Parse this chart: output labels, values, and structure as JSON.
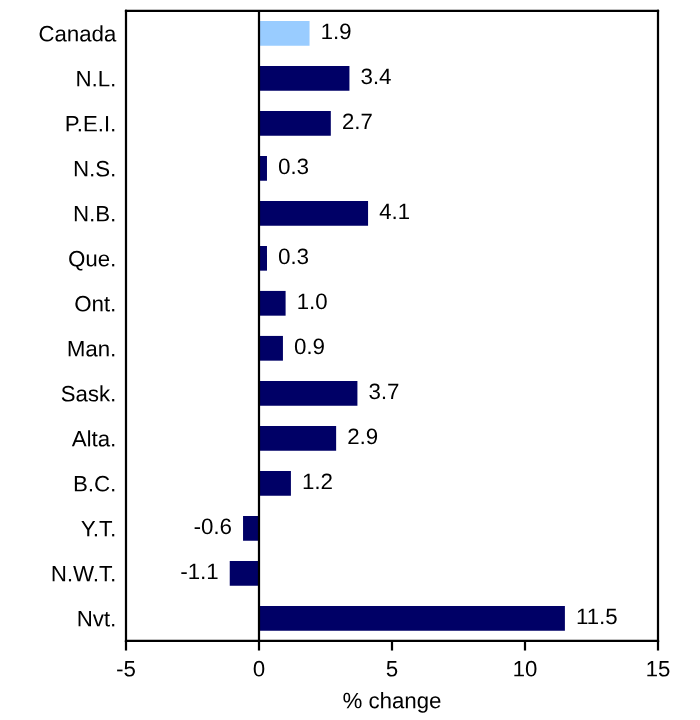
{
  "chart_data": {
    "type": "bar",
    "orientation": "horizontal",
    "xlabel": "% change",
    "categories": [
      "Canada",
      "N.L.",
      "P.E.I.",
      "N.S.",
      "N.B.",
      "Que.",
      "Ont.",
      "Man.",
      "Sask.",
      "Alta.",
      "B.C.",
      "Y.T.",
      "N.W.T.",
      "Nvt."
    ],
    "values": [
      1.9,
      3.4,
      2.7,
      0.3,
      4.1,
      0.3,
      1.0,
      0.9,
      3.7,
      2.9,
      1.2,
      -0.6,
      -1.1,
      11.5
    ],
    "value_labels": [
      "1.9",
      "3.4",
      "2.7",
      "0.3",
      "4.1",
      "0.3",
      "1.0",
      "0.9",
      "3.7",
      "2.9",
      "1.2",
      "-0.6",
      "-1.1",
      "11.5"
    ],
    "colors": [
      "#99ccff",
      "#000066",
      "#000066",
      "#000066",
      "#000066",
      "#000066",
      "#000066",
      "#000066",
      "#000066",
      "#000066",
      "#000066",
      "#000066",
      "#000066",
      "#000066"
    ],
    "xlim": [
      -5,
      15
    ],
    "xticks": [
      -5,
      0,
      5,
      10,
      15
    ],
    "grid": false,
    "ref_lines": [
      {
        "axis": "x",
        "value": 0,
        "color": "#000000"
      }
    ]
  }
}
